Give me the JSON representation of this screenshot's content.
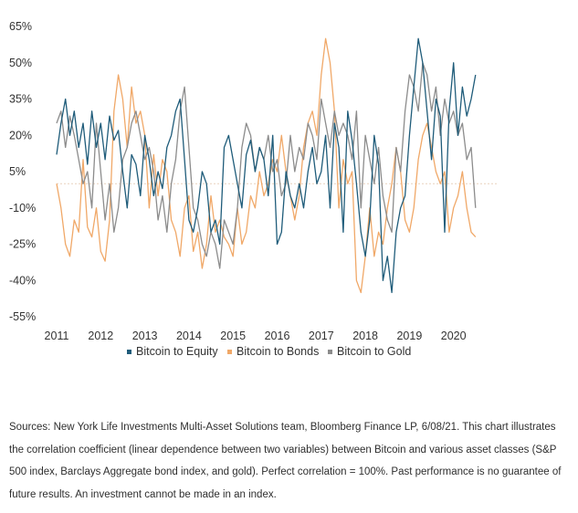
{
  "chart_data": {
    "type": "line",
    "title": "",
    "xlabel": "",
    "ylabel": "",
    "x_ticks": [
      "2011",
      "2012",
      "2013",
      "2014",
      "2015",
      "2016",
      "2017",
      "2018",
      "2019",
      "2020"
    ],
    "y_ticks": [
      "65%",
      "50%",
      "35%",
      "20%",
      "5%",
      "-10%",
      "-25%",
      "-40%",
      "-55%"
    ],
    "xlim": [
      2011.0,
      2021.0
    ],
    "ylim": [
      -55,
      65
    ],
    "reference_line": 0,
    "grid": false,
    "legend_position": "bottom",
    "series": [
      {
        "name": "Bitcoin to Equity",
        "color": "#1f5c7a",
        "x": [
          2011.0,
          2011.1,
          2011.2,
          2011.3,
          2011.4,
          2011.5,
          2011.6,
          2011.7,
          2011.8,
          2011.9,
          2012.0,
          2012.1,
          2012.2,
          2012.3,
          2012.4,
          2012.5,
          2012.6,
          2012.7,
          2012.8,
          2012.9,
          2013.0,
          2013.1,
          2013.2,
          2013.3,
          2013.4,
          2013.5,
          2013.6,
          2013.7,
          2013.8,
          2013.9,
          2014.0,
          2014.1,
          2014.2,
          2014.3,
          2014.4,
          2014.5,
          2014.6,
          2014.7,
          2014.8,
          2014.9,
          2015.0,
          2015.1,
          2015.2,
          2015.3,
          2015.4,
          2015.5,
          2015.6,
          2015.7,
          2015.8,
          2015.9,
          2016.0,
          2016.1,
          2016.2,
          2016.3,
          2016.4,
          2016.5,
          2016.6,
          2016.7,
          2016.8,
          2016.9,
          2017.0,
          2017.1,
          2017.2,
          2017.3,
          2017.4,
          2017.5,
          2017.6,
          2017.7,
          2017.8,
          2017.9,
          2018.0,
          2018.1,
          2018.2,
          2018.3,
          2018.4,
          2018.5,
          2018.6,
          2018.7,
          2018.8,
          2018.9,
          2019.0,
          2019.1,
          2019.2,
          2019.3,
          2019.4,
          2019.5,
          2019.6,
          2019.7,
          2019.8,
          2019.9,
          2020.0,
          2020.1,
          2020.2,
          2020.3,
          2020.4,
          2020.5
        ],
        "values": [
          12,
          25,
          35,
          20,
          30,
          15,
          25,
          8,
          30,
          15,
          25,
          10,
          28,
          18,
          22,
          5,
          -10,
          12,
          8,
          -5,
          20,
          10,
          -5,
          5,
          -2,
          15,
          20,
          30,
          35,
          10,
          -15,
          -20,
          -10,
          5,
          0,
          -20,
          -15,
          -25,
          15,
          20,
          10,
          0,
          -10,
          12,
          18,
          5,
          15,
          10,
          -5,
          20,
          -25,
          -20,
          5,
          -5,
          -10,
          0,
          -10,
          5,
          15,
          0,
          5,
          20,
          -10,
          25,
          15,
          -20,
          30,
          18,
          0,
          -20,
          -30,
          -15,
          20,
          8,
          -40,
          -30,
          -45,
          -20,
          -10,
          -5,
          20,
          40,
          60,
          50,
          30,
          10,
          35,
          28,
          -20,
          30,
          50,
          20,
          40,
          28,
          35,
          45
        ]
      },
      {
        "name": "Bitcoin to Bonds",
        "color": "#f0a868",
        "x": [
          2011.0,
          2011.1,
          2011.2,
          2011.3,
          2011.4,
          2011.5,
          2011.6,
          2011.7,
          2011.8,
          2011.9,
          2012.0,
          2012.1,
          2012.2,
          2012.3,
          2012.4,
          2012.5,
          2012.6,
          2012.7,
          2012.8,
          2012.9,
          2013.0,
          2013.1,
          2013.2,
          2013.3,
          2013.4,
          2013.5,
          2013.6,
          2013.7,
          2013.8,
          2013.9,
          2014.0,
          2014.1,
          2014.2,
          2014.3,
          2014.4,
          2014.5,
          2014.6,
          2014.7,
          2014.8,
          2014.9,
          2015.0,
          2015.1,
          2015.2,
          2015.3,
          2015.4,
          2015.5,
          2015.6,
          2015.7,
          2015.8,
          2015.9,
          2016.0,
          2016.1,
          2016.2,
          2016.3,
          2016.4,
          2016.5,
          2016.6,
          2016.7,
          2016.8,
          2016.9,
          2017.0,
          2017.1,
          2017.2,
          2017.3,
          2017.4,
          2017.5,
          2017.6,
          2017.7,
          2017.8,
          2017.9,
          2018.0,
          2018.1,
          2018.2,
          2018.3,
          2018.4,
          2018.5,
          2018.6,
          2018.7,
          2018.8,
          2018.9,
          2019.0,
          2019.1,
          2019.2,
          2019.3,
          2019.4,
          2019.5,
          2019.6,
          2019.7,
          2019.8,
          2019.9,
          2020.0,
          2020.1,
          2020.2,
          2020.3,
          2020.4,
          2020.5
        ],
        "values": [
          0,
          -10,
          -25,
          -30,
          -15,
          -20,
          10,
          -18,
          -22,
          -10,
          -28,
          -32,
          -15,
          30,
          45,
          35,
          15,
          40,
          25,
          30,
          20,
          -10,
          12,
          -5,
          10,
          5,
          -15,
          -20,
          -30,
          -10,
          -5,
          -28,
          -20,
          -35,
          -25,
          -5,
          -20,
          -15,
          -22,
          -25,
          -30,
          -10,
          -25,
          -20,
          -5,
          -10,
          5,
          -5,
          0,
          10,
          5,
          20,
          5,
          -5,
          -15,
          -5,
          15,
          25,
          30,
          20,
          45,
          60,
          50,
          30,
          -10,
          10,
          0,
          5,
          -40,
          -45,
          -30,
          -10,
          -30,
          -20,
          -25,
          -10,
          0,
          15,
          5,
          -15,
          -20,
          -10,
          10,
          20,
          25,
          15,
          5,
          0,
          5,
          -20,
          -10,
          -5,
          5,
          -10,
          -20,
          -22
        ]
      },
      {
        "name": "Bitcoin to Gold",
        "color": "#8c8c8c",
        "x": [
          2011.0,
          2011.1,
          2011.2,
          2011.3,
          2011.4,
          2011.5,
          2011.6,
          2011.7,
          2011.8,
          2011.9,
          2012.0,
          2012.1,
          2012.2,
          2012.3,
          2012.4,
          2012.5,
          2012.6,
          2012.7,
          2012.8,
          2012.9,
          2013.0,
          2013.1,
          2013.2,
          2013.3,
          2013.4,
          2013.5,
          2013.6,
          2013.7,
          2013.8,
          2013.9,
          2014.0,
          2014.1,
          2014.2,
          2014.3,
          2014.4,
          2014.5,
          2014.6,
          2014.7,
          2014.8,
          2014.9,
          2015.0,
          2015.1,
          2015.2,
          2015.3,
          2015.4,
          2015.5,
          2015.6,
          2015.7,
          2015.8,
          2015.9,
          2016.0,
          2016.1,
          2016.2,
          2016.3,
          2016.4,
          2016.5,
          2016.6,
          2016.7,
          2016.8,
          2016.9,
          2017.0,
          2017.1,
          2017.2,
          2017.3,
          2017.4,
          2017.5,
          2017.6,
          2017.7,
          2017.8,
          2017.9,
          2018.0,
          2018.1,
          2018.2,
          2018.3,
          2018.4,
          2018.5,
          2018.6,
          2018.7,
          2018.8,
          2018.9,
          2019.0,
          2019.1,
          2019.2,
          2019.3,
          2019.4,
          2019.5,
          2019.6,
          2019.7,
          2019.8,
          2019.9,
          2020.0,
          2020.1,
          2020.2,
          2020.3,
          2020.4,
          2020.5
        ],
        "values": [
          25,
          30,
          15,
          28,
          20,
          10,
          0,
          5,
          -10,
          25,
          5,
          -15,
          0,
          -20,
          -10,
          10,
          15,
          25,
          30,
          20,
          10,
          15,
          5,
          -15,
          -5,
          -20,
          0,
          10,
          30,
          40,
          15,
          -10,
          -15,
          -25,
          -30,
          -20,
          -25,
          -35,
          -15,
          -20,
          -25,
          -10,
          15,
          25,
          20,
          5,
          15,
          10,
          20,
          5,
          10,
          -5,
          0,
          20,
          5,
          15,
          10,
          25,
          20,
          10,
          35,
          25,
          15,
          30,
          20,
          25,
          20,
          10,
          30,
          -10,
          20,
          10,
          0,
          15,
          -5,
          -15,
          -20,
          15,
          5,
          30,
          45,
          40,
          30,
          50,
          45,
          30,
          40,
          20,
          35,
          25,
          30,
          20,
          25,
          10,
          15,
          -10
        ]
      }
    ]
  },
  "footnote": "Sources: New York Life Investments Multi-Asset Solutions team, Bloomberg Finance LP, 6/08/21. This chart illustrates the correlation coefficient (linear dependence between two variables) between Bitcoin and various asset classes (S&P 500 index, Barclays Aggregate bond index, and gold). Perfect correlation = 100%. Past performance is no guarantee of future results. An investment cannot be made in an index."
}
